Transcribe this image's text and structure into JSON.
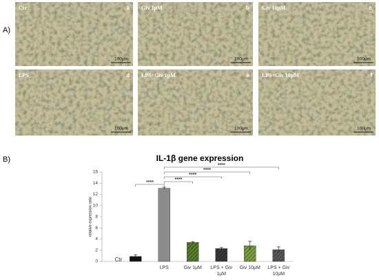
{
  "panel_a": {
    "label": "A)",
    "images": [
      {
        "label": "Ctr",
        "letter": "a",
        "scale": "100μm"
      },
      {
        "label": "Giv 1μM",
        "letter": "b",
        "scale": "100μm"
      },
      {
        "label": "Giv 10μM",
        "letter": "c",
        "scale": "100μm"
      },
      {
        "label": "LPS",
        "letter": "d",
        "scale": "100μm"
      },
      {
        "label": "LPS+Giv 1μM",
        "letter": "e",
        "scale": "100μm"
      },
      {
        "label": "LPS+Giv 10μM",
        "letter": "f",
        "scale": "100μm"
      }
    ]
  },
  "panel_b": {
    "label": "B)"
  },
  "chart_data": {
    "type": "bar",
    "title": "IL-1β gene expression",
    "y_label": "relative expression ratio",
    "categories": [
      "Ctr",
      "LPS",
      "Giv 1μM",
      "LPS + Giv 1μM",
      "Giv 10μM",
      "LPS + Giv 10μM"
    ],
    "values": [
      0.9,
      13.1,
      3.4,
      2.3,
      2.8,
      2.1
    ],
    "errors": [
      0.3,
      0.2,
      0.15,
      0.2,
      0.8,
      0.5
    ],
    "colors": [
      "#111111",
      "#8c8c8c",
      "#5a7d2e",
      "#3a3a3a",
      "#7aa043",
      "#5a5a5a"
    ],
    "hatched": [
      false,
      false,
      true,
      true,
      true,
      true
    ],
    "ylim": [
      0,
      16
    ],
    "yticks": [
      0,
      2,
      4,
      6,
      8,
      10,
      12,
      14,
      16
    ],
    "annotations": [
      {
        "from": "Ctr",
        "to": "LPS",
        "label": "****"
      },
      {
        "from": "LPS",
        "to": "Giv 1μM",
        "label": "****"
      },
      {
        "from": "LPS",
        "to": "LPS + Giv 1μM",
        "label": "****"
      },
      {
        "from": "LPS",
        "to": "Giv 10μM",
        "label": "****"
      },
      {
        "from": "LPS",
        "to": "LPS + Giv 10μM",
        "label": "****"
      }
    ]
  }
}
